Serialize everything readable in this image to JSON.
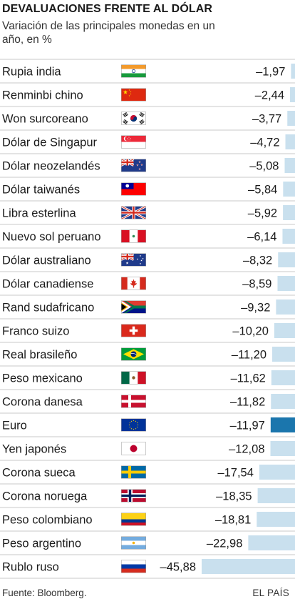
{
  "header": {
    "title": "DEVALUACIONES FRENTE AL DÓLAR",
    "subtitle": "Variación de las principales monedas en un año, en %"
  },
  "footer": {
    "source": "Fuente: Bloomberg.",
    "brand": "EL PAÍS"
  },
  "colors": {
    "bar": "#c9e0ee",
    "highlight_bar": "#1b76ad",
    "separator": "#c8c8c8",
    "text": "#1a1a1a"
  },
  "chart_data": {
    "type": "bar",
    "orientation": "horizontal",
    "title": "DEVALUACIONES FRENTE AL DÓLAR",
    "subtitle": "Variación de las principales monedas en un año, en %",
    "unit": "%",
    "xlim": [
      -45.88,
      0
    ],
    "highlight": "Euro",
    "categories": [
      "Rupia india",
      "Renminbi chino",
      "Won surcoreano",
      "Dólar de Singapur",
      "Dólar neozelandés",
      "Dólar taiwanés",
      "Libra esterlina",
      "Nuevo sol peruano",
      "Dólar australiano",
      "Dólar canadiense",
      "Rand sudafricano",
      "Franco suizo",
      "Real brasileño",
      "Peso mexicano",
      "Corona danesa",
      "Euro",
      "Yen japonés",
      "Corona sueca",
      "Corona noruega",
      "Peso colombiano",
      "Peso argentino",
      "Rublo ruso"
    ],
    "values": [
      -1.97,
      -2.44,
      -3.77,
      -4.72,
      -5.08,
      -5.84,
      -5.92,
      -6.14,
      -8.32,
      -8.59,
      -9.32,
      -10.2,
      -11.2,
      -11.62,
      -11.82,
      -11.97,
      -12.08,
      -17.54,
      -18.35,
      -18.81,
      -22.98,
      -45.88
    ],
    "value_labels": [
      "–1,97",
      "–2,44",
      "–3,77",
      "–4,72",
      "–5,08",
      "–5,84",
      "–5,92",
      "–6,14",
      "–8,32",
      "–8,59",
      "–9,32",
      "–10,20",
      "–11,20",
      "–11,62",
      "–11,82",
      "–11,97",
      "–12,08",
      "–17,54",
      "–18,35",
      "–18,81",
      "–22,98",
      "–45,88"
    ],
    "flag_icons": [
      "india-flag-icon",
      "china-flag-icon",
      "south-korea-flag-icon",
      "singapore-flag-icon",
      "new-zealand-flag-icon",
      "taiwan-flag-icon",
      "uk-flag-icon",
      "peru-flag-icon",
      "australia-flag-icon",
      "canada-flag-icon",
      "south-africa-flag-icon",
      "switzerland-flag-icon",
      "brazil-flag-icon",
      "mexico-flag-icon",
      "denmark-flag-icon",
      "eu-flag-icon",
      "japan-flag-icon",
      "sweden-flag-icon",
      "norway-flag-icon",
      "colombia-flag-icon",
      "argentina-flag-icon",
      "russia-flag-icon"
    ]
  }
}
